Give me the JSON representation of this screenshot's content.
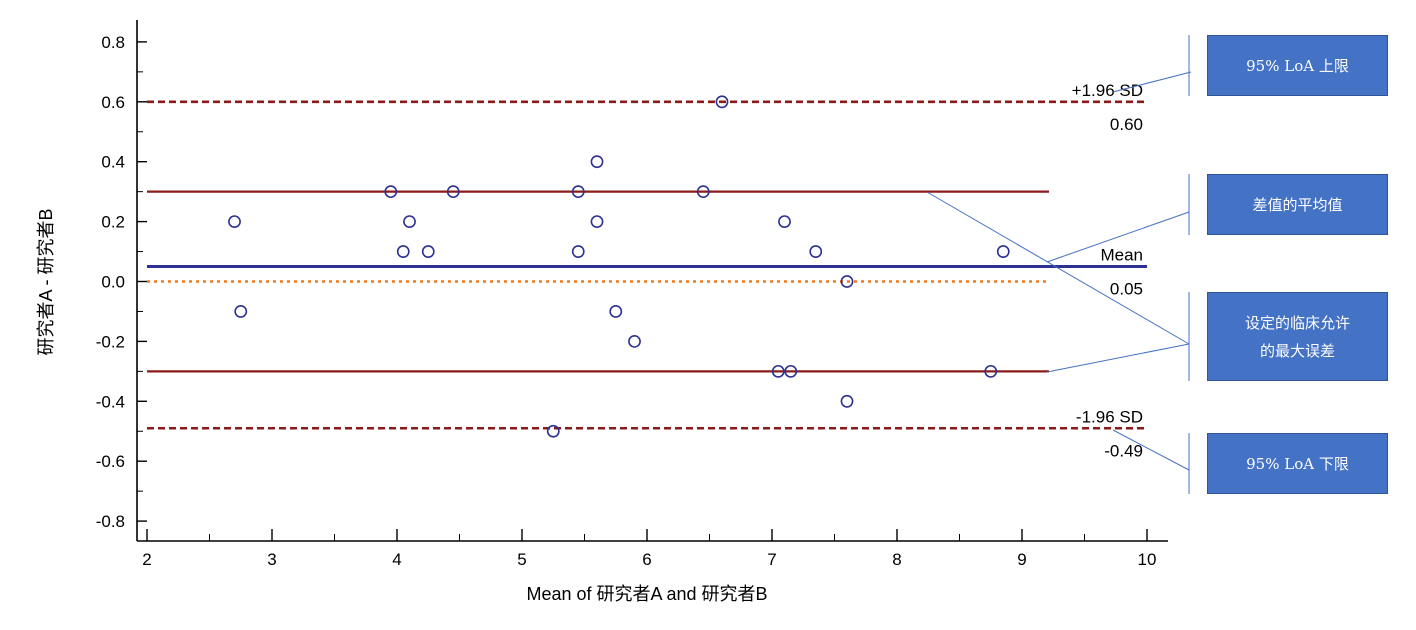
{
  "chart_data": {
    "type": "scatter",
    "title": "",
    "xlabel": "Mean of 研究者A and 研究者B",
    "ylabel": "研究者A - 研究者B",
    "xlim": [
      2,
      10
    ],
    "ylim": [
      -0.85,
      0.87
    ],
    "x_ticks": [
      2,
      3,
      4,
      5,
      6,
      7,
      8,
      9,
      10
    ],
    "y_ticks": [
      "-0.8",
      "-0.6",
      "-0.4",
      "-0.2",
      "0.0",
      "0.2",
      "0.4",
      "0.6",
      "0.8"
    ],
    "points": [
      {
        "x": 2.7,
        "y": 0.2
      },
      {
        "x": 2.75,
        "y": -0.1
      },
      {
        "x": 3.95,
        "y": 0.3
      },
      {
        "x": 4.05,
        "y": 0.1
      },
      {
        "x": 4.1,
        "y": 0.2
      },
      {
        "x": 4.25,
        "y": 0.1
      },
      {
        "x": 4.45,
        "y": 0.3
      },
      {
        "x": 5.25,
        "y": -0.5
      },
      {
        "x": 5.45,
        "y": 0.3
      },
      {
        "x": 5.45,
        "y": 0.1
      },
      {
        "x": 5.6,
        "y": 0.4
      },
      {
        "x": 5.6,
        "y": 0.2
      },
      {
        "x": 5.75,
        "y": -0.1
      },
      {
        "x": 5.9,
        "y": -0.2
      },
      {
        "x": 6.45,
        "y": 0.3
      },
      {
        "x": 6.6,
        "y": 0.6
      },
      {
        "x": 7.05,
        "y": -0.3
      },
      {
        "x": 7.1,
        "y": 0.2
      },
      {
        "x": 7.15,
        "y": -0.3
      },
      {
        "x": 7.35,
        "y": 0.1
      },
      {
        "x": 7.6,
        "y": 0.0
      },
      {
        "x": 7.6,
        "y": -0.4
      },
      {
        "x": 8.75,
        "y": -0.3
      },
      {
        "x": 8.85,
        "y": 0.1
      }
    ],
    "reference_lines": [
      {
        "id": "upper-loa",
        "y": 0.6,
        "style": "dashed",
        "color": "#8b1a1a",
        "label_top": "+1.96 SD",
        "label_bottom": "0.60"
      },
      {
        "id": "mean",
        "y": 0.05,
        "style": "solid",
        "color": "#2e3192",
        "label_top": "Mean",
        "label_bottom": "0.05"
      },
      {
        "id": "lower-loa",
        "y": -0.49,
        "style": "dashed",
        "color": "#8b1a1a",
        "label_top": "-1.96 SD",
        "label_bottom": "-0.49"
      },
      {
        "id": "zero",
        "y": 0.0,
        "style": "dotted",
        "color": "#f07820",
        "label_top": "",
        "label_bottom": ""
      },
      {
        "id": "clinical-upper",
        "y": 0.3,
        "style": "solid",
        "color": "#8b1a1a",
        "label_top": "",
        "label_bottom": ""
      },
      {
        "id": "clinical-lower",
        "y": -0.3,
        "style": "solid",
        "color": "#8b1a1a",
        "label_top": "",
        "label_bottom": ""
      }
    ],
    "callouts": [
      {
        "id": "upper-loa",
        "text": "95% LoA 上限"
      },
      {
        "id": "mean-diff",
        "text": "差值的平均值"
      },
      {
        "id": "clinical",
        "text": "设定的临床允许\n的最大误差"
      },
      {
        "id": "lower-loa",
        "text": "95% LoA 下限"
      }
    ],
    "colors": {
      "marker": "#2e3192",
      "callout_fill": "#4472c4",
      "leader": "#4472c4"
    },
    "grid": false,
    "legend": "none"
  }
}
